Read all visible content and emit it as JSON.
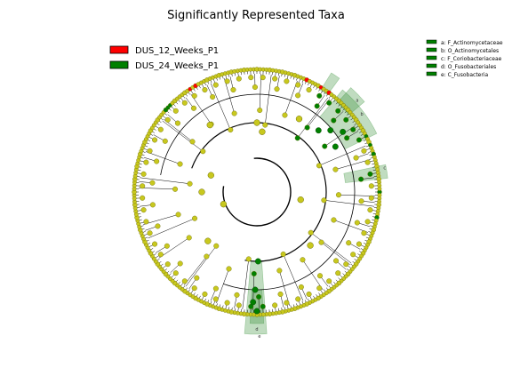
{
  "chart_data": {
    "type": "cladogram",
    "title": "Significantly Represented Taxa",
    "groups": [
      {
        "name": "DUS_12_Weeks_P1",
        "color": "#ff0000"
      },
      {
        "name": "DUS_24_Weeks_P1",
        "color": "#008000"
      }
    ],
    "node_color_default": "#c8c81e",
    "ring_count": 6,
    "highlighted_clades": [
      {
        "label": "a: F_Actinomycetaceae",
        "letter": "a"
      },
      {
        "label": "b: O_Actinomycetales",
        "letter": "b"
      },
      {
        "label": "c: F_Coriobacteriaceae",
        "letter": "c"
      },
      {
        "label": "d: O_Fusobacteriales",
        "letter": "d"
      },
      {
        "label": "e: C_Fusobacteria",
        "letter": "e"
      }
    ]
  }
}
